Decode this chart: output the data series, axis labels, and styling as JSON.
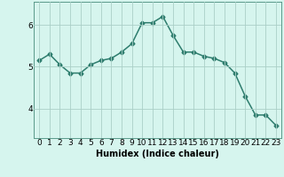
{
  "x": [
    0,
    1,
    2,
    3,
    4,
    5,
    6,
    7,
    8,
    9,
    10,
    11,
    12,
    13,
    14,
    15,
    16,
    17,
    18,
    19,
    20,
    21,
    22,
    23
  ],
  "y": [
    5.15,
    5.3,
    5.05,
    4.85,
    4.85,
    5.05,
    5.15,
    5.2,
    5.35,
    5.55,
    6.05,
    6.05,
    6.2,
    5.75,
    5.35,
    5.35,
    5.25,
    5.2,
    5.1,
    4.85,
    4.3,
    3.85,
    3.85,
    3.6
  ],
  "line_color": "#2e7d6e",
  "marker": "D",
  "markersize": 2.5,
  "linewidth": 1.1,
  "xlabel": "Humidex (Indice chaleur)",
  "ylim": [
    3.3,
    6.55
  ],
  "yticks": [
    4,
    5,
    6
  ],
  "bg_color": "#d6f5ee",
  "grid_color": "#aacfc7",
  "xlabel_fontsize": 7,
  "tick_fontsize": 6.5
}
